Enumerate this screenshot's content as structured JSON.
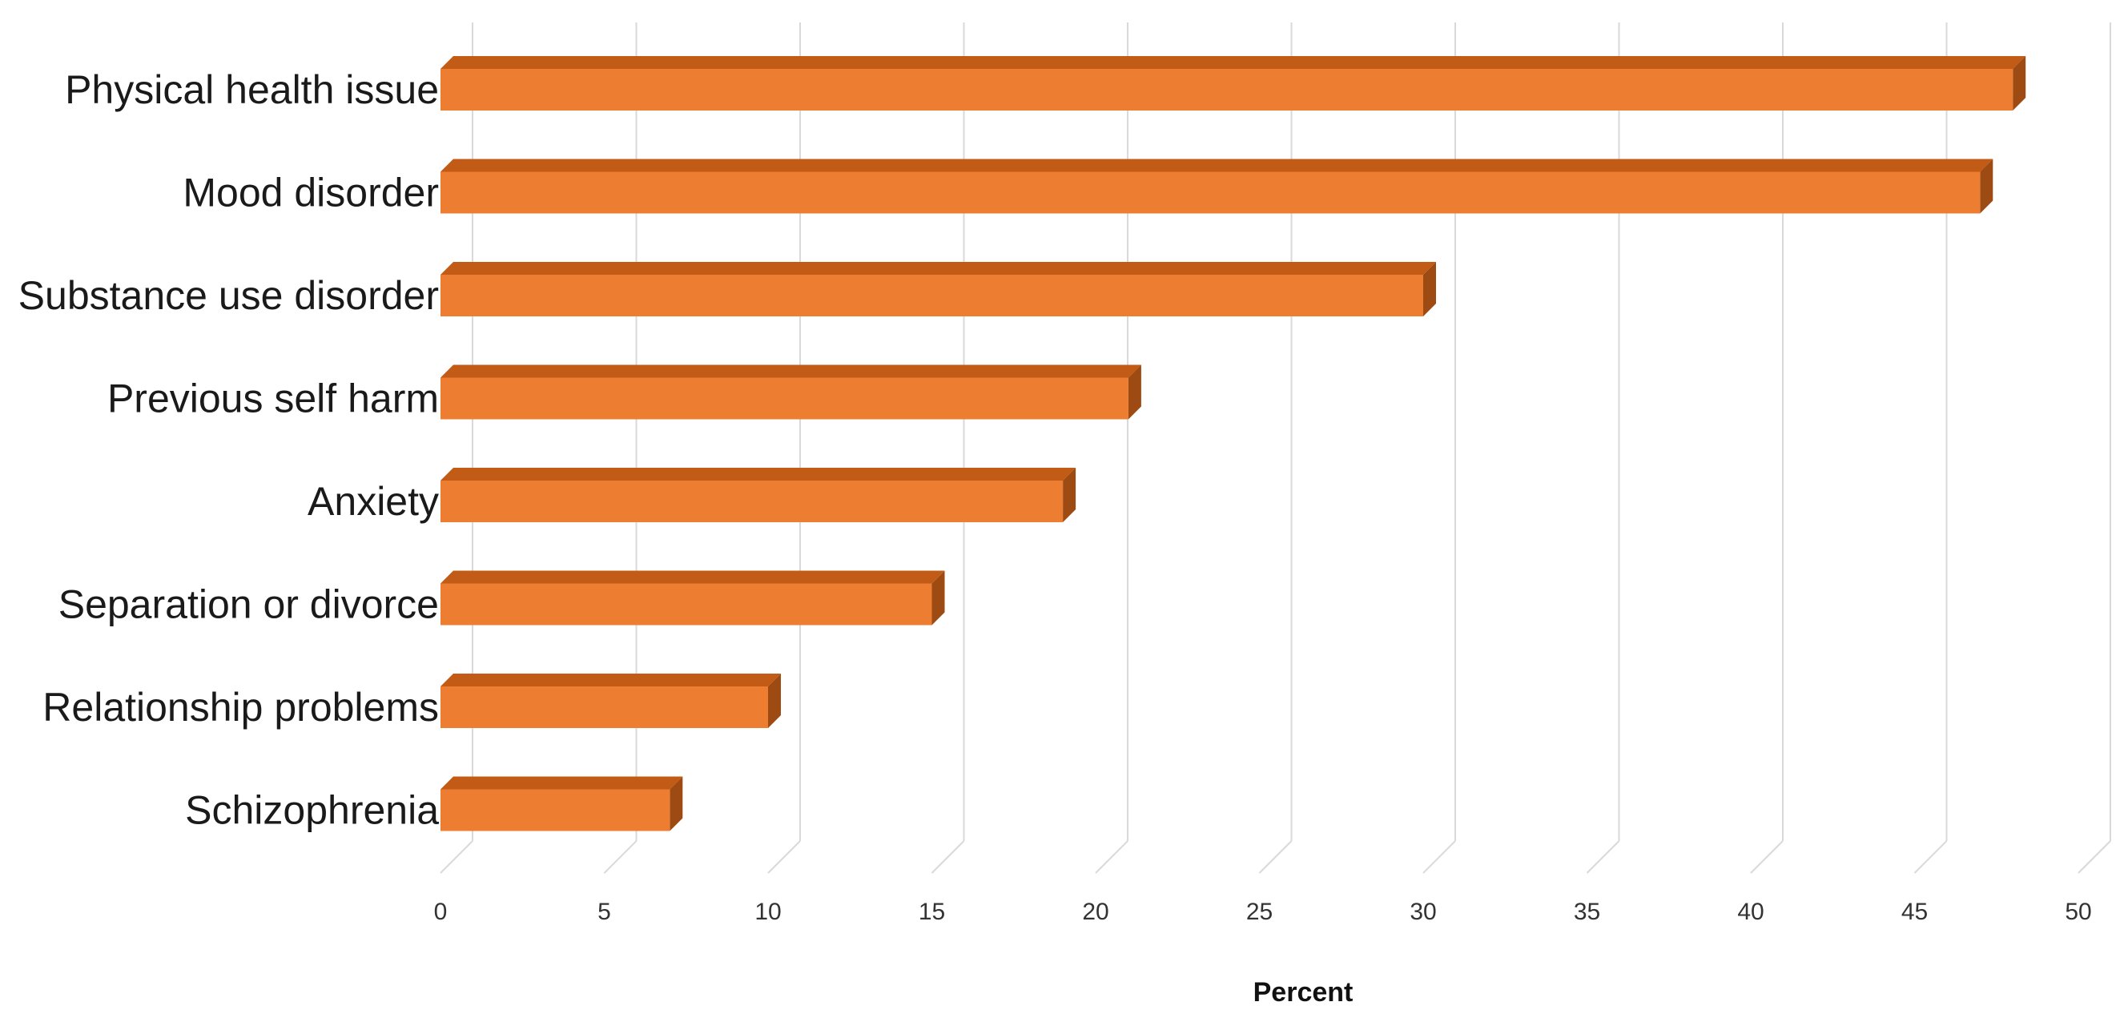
{
  "chart_data": {
    "type": "bar",
    "orientation": "horizontal",
    "style": "3d",
    "categories": [
      "Physical health issue",
      "Mood disorder",
      "Substance use disorder",
      "Previous self harm",
      "Anxiety",
      "Separation or divorce",
      "Relationship problems",
      "Schizophrenia"
    ],
    "values": [
      48,
      47,
      30,
      21,
      19,
      15,
      10,
      7
    ],
    "title": "",
    "xlabel": "Percent",
    "ylabel": "",
    "xlim": [
      0,
      50
    ],
    "x_ticks": [
      "0",
      "5",
      "10",
      "15",
      "20",
      "25",
      "30",
      "35",
      "40",
      "45",
      "50"
    ],
    "grid": "vertical",
    "legend": "none",
    "colors": {
      "bar_front": "#ED7D31",
      "bar_top": "#C25B16",
      "bar_side": "#9E4A13",
      "gridline": "#D9D9D9"
    }
  }
}
